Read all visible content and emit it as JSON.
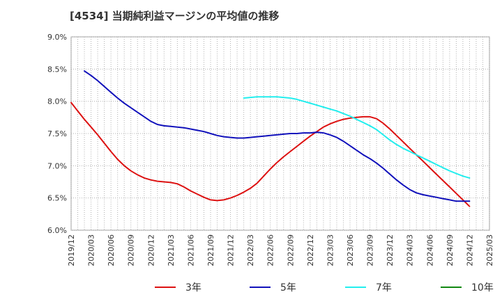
{
  "chart_data": {
    "type": "line",
    "title": "[4534]  当期純利益マージンの平均値の推移",
    "xlabel": "",
    "ylabel": "",
    "ylim": [
      6.0,
      9.0
    ],
    "yticks": [
      "6.0%",
      "6.5%",
      "7.0%",
      "7.5%",
      "8.0%",
      "8.5%",
      "9.0%"
    ],
    "xticks": [
      "2019/12",
      "2020/03",
      "2020/06",
      "2020/09",
      "2020/12",
      "2021/03",
      "2021/06",
      "2021/09",
      "2021/12",
      "2022/03",
      "2022/06",
      "2022/09",
      "2022/12",
      "2023/03",
      "2023/06",
      "2023/09",
      "2023/12",
      "2024/03",
      "2024/06",
      "2024/09",
      "2024/12",
      "2025/03"
    ],
    "grid": true,
    "legend_position": "bottom",
    "series": [
      {
        "name": "3年",
        "color": "#dd1111",
        "x": [
          "2019/12",
          "2020/01",
          "2020/02",
          "2020/03",
          "2020/04",
          "2020/05",
          "2020/06",
          "2020/07",
          "2020/08",
          "2020/09",
          "2020/10",
          "2020/11",
          "2020/12",
          "2021/01",
          "2021/02",
          "2021/03",
          "2021/04",
          "2021/05",
          "2021/06",
          "2021/07",
          "2021/08",
          "2021/09",
          "2021/10",
          "2021/11",
          "2021/12",
          "2022/01",
          "2022/02",
          "2022/03",
          "2022/04",
          "2022/05",
          "2022/06",
          "2022/07",
          "2022/08",
          "2022/09",
          "2022/10",
          "2022/11",
          "2022/12",
          "2023/01",
          "2023/02",
          "2023/03",
          "2023/04",
          "2023/05",
          "2023/06",
          "2023/07",
          "2023/08",
          "2023/09",
          "2023/10",
          "2023/11",
          "2023/12",
          "2024/01",
          "2024/02",
          "2024/03",
          "2024/04",
          "2024/05",
          "2024/06",
          "2024/07",
          "2024/08",
          "2024/09",
          "2024/10",
          "2024/11",
          "2024/12"
        ],
        "values": [
          7.98,
          7.85,
          7.72,
          7.6,
          7.48,
          7.35,
          7.22,
          7.1,
          7.0,
          6.92,
          6.86,
          6.81,
          6.78,
          6.76,
          6.75,
          6.74,
          6.72,
          6.67,
          6.61,
          6.56,
          6.51,
          6.47,
          6.46,
          6.47,
          6.5,
          6.54,
          6.59,
          6.65,
          6.73,
          6.84,
          6.95,
          7.05,
          7.14,
          7.22,
          7.3,
          7.38,
          7.46,
          7.53,
          7.6,
          7.65,
          7.69,
          7.72,
          7.74,
          7.75,
          7.76,
          7.76,
          7.73,
          7.66,
          7.57,
          7.47,
          7.37,
          7.27,
          7.17,
          7.07,
          6.97,
          6.87,
          6.77,
          6.67,
          6.57,
          6.47,
          6.37
        ]
      },
      {
        "name": "5年",
        "color": "#1111bb",
        "x": [
          "2020/02",
          "2020/03",
          "2020/04",
          "2020/05",
          "2020/06",
          "2020/07",
          "2020/08",
          "2020/09",
          "2020/10",
          "2020/11",
          "2020/12",
          "2021/01",
          "2021/02",
          "2021/03",
          "2021/04",
          "2021/05",
          "2021/06",
          "2021/07",
          "2021/08",
          "2021/09",
          "2021/10",
          "2021/11",
          "2021/12",
          "2022/01",
          "2022/02",
          "2022/03",
          "2022/04",
          "2022/05",
          "2022/06",
          "2022/07",
          "2022/08",
          "2022/09",
          "2022/10",
          "2022/11",
          "2022/12",
          "2023/01",
          "2023/02",
          "2023/03",
          "2023/04",
          "2023/05",
          "2023/06",
          "2023/07",
          "2023/08",
          "2023/09",
          "2023/10",
          "2023/11",
          "2023/12",
          "2024/01",
          "2024/02",
          "2024/03",
          "2024/04",
          "2024/05",
          "2024/06",
          "2024/07",
          "2024/08",
          "2024/09",
          "2024/10",
          "2024/11",
          "2024/12"
        ],
        "values": [
          8.47,
          8.4,
          8.32,
          8.23,
          8.14,
          8.05,
          7.97,
          7.9,
          7.83,
          7.76,
          7.69,
          7.64,
          7.62,
          7.61,
          7.6,
          7.59,
          7.57,
          7.55,
          7.53,
          7.5,
          7.47,
          7.45,
          7.44,
          7.43,
          7.43,
          7.44,
          7.45,
          7.46,
          7.47,
          7.48,
          7.49,
          7.5,
          7.5,
          7.51,
          7.51,
          7.52,
          7.51,
          7.48,
          7.44,
          7.38,
          7.31,
          7.24,
          7.17,
          7.11,
          7.04,
          6.96,
          6.87,
          6.78,
          6.7,
          6.63,
          6.58,
          6.55,
          6.53,
          6.51,
          6.49,
          6.47,
          6.45,
          6.45,
          6.45
        ]
      },
      {
        "name": "7年",
        "color": "#22eeee",
        "x": [
          "2022/02",
          "2022/03",
          "2022/04",
          "2022/05",
          "2022/06",
          "2022/07",
          "2022/08",
          "2022/09",
          "2022/10",
          "2022/11",
          "2022/12",
          "2023/01",
          "2023/02",
          "2023/03",
          "2023/04",
          "2023/05",
          "2023/06",
          "2023/07",
          "2023/08",
          "2023/09",
          "2023/10",
          "2023/11",
          "2023/12",
          "2024/01",
          "2024/02",
          "2024/03",
          "2024/04",
          "2024/05",
          "2024/06",
          "2024/07",
          "2024/08",
          "2024/09",
          "2024/10",
          "2024/11",
          "2024/12"
        ],
        "values": [
          8.05,
          8.06,
          8.07,
          8.07,
          8.07,
          8.07,
          8.06,
          8.05,
          8.03,
          8.0,
          7.97,
          7.94,
          7.91,
          7.88,
          7.85,
          7.81,
          7.77,
          7.72,
          7.67,
          7.62,
          7.56,
          7.48,
          7.4,
          7.33,
          7.27,
          7.22,
          7.17,
          7.12,
          7.07,
          7.02,
          6.97,
          6.92,
          6.88,
          6.84,
          6.81
        ]
      },
      {
        "name": "10年",
        "color": "#118811",
        "x": [],
        "values": []
      }
    ]
  }
}
